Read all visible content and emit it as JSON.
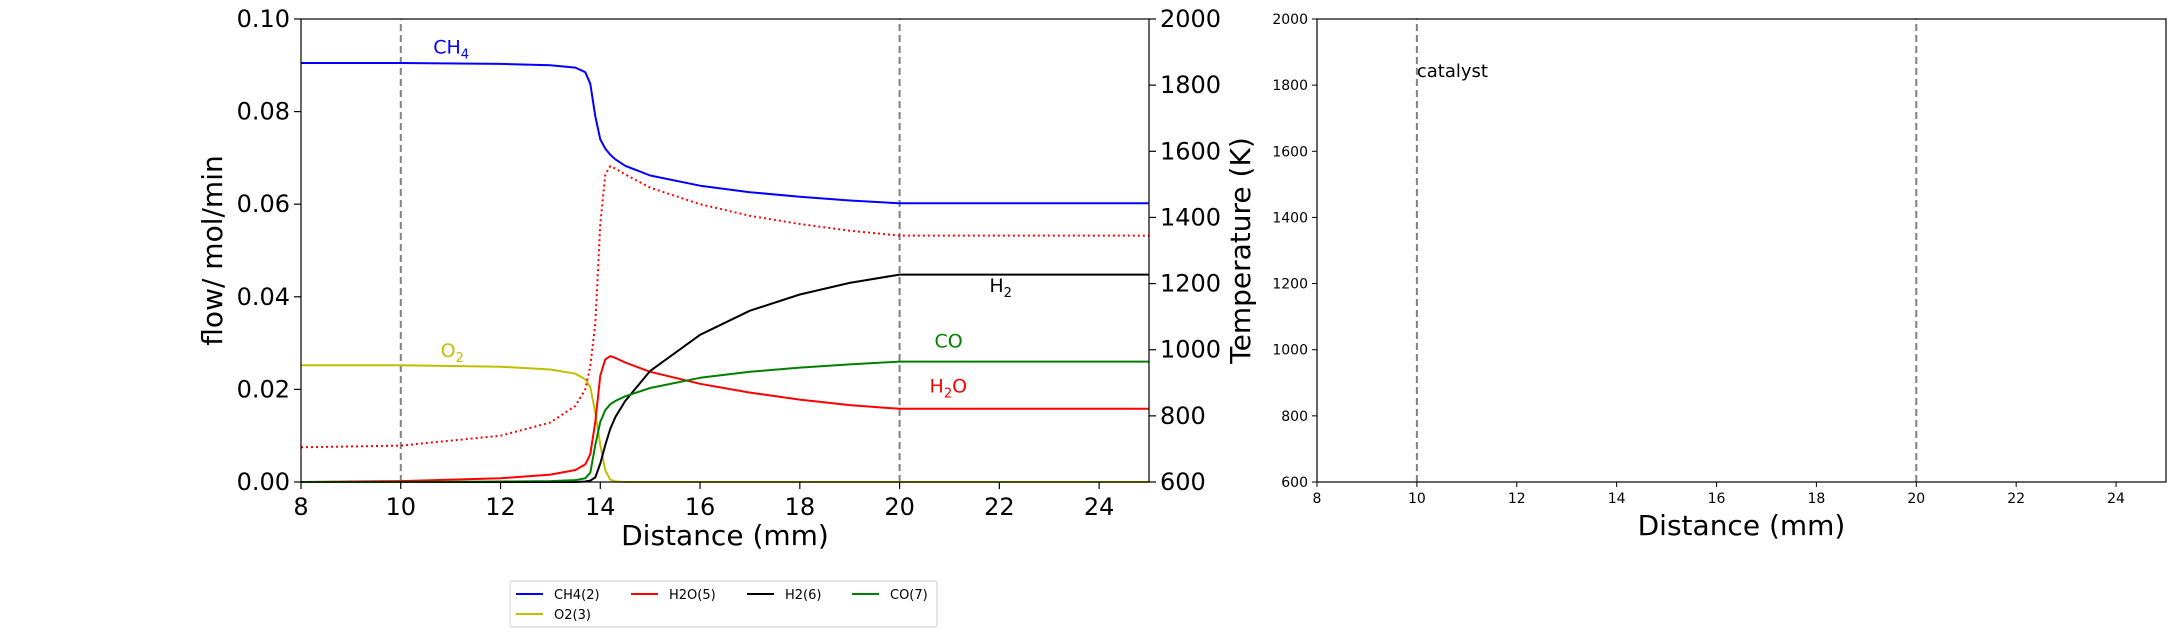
{
  "chart_data": [
    {
      "type": "line",
      "xlabel": "Distance (mm)",
      "ylabel": "flow/ mol/min",
      "y2label": "Temperature (K)",
      "xlim": [
        8,
        25
      ],
      "ylim": [
        0,
        0.1
      ],
      "y2lim": [
        600,
        2000
      ],
      "xticks": [
        "8",
        "10",
        "12",
        "14",
        "16",
        "18",
        "20",
        "22",
        "24"
      ],
      "yticks": [
        "0.00",
        "0.02",
        "0.04",
        "0.06",
        "0.08",
        "0.10"
      ],
      "y2ticks": [
        "600",
        "800",
        "1000",
        "1200",
        "1400",
        "1600",
        "1800",
        "2000"
      ],
      "grid": false,
      "vlines": [
        10,
        20
      ],
      "x": [
        8,
        10,
        12,
        13,
        13.5,
        13.7,
        13.8,
        13.9,
        14.0,
        14.1,
        14.2,
        14.3,
        14.5,
        15,
        16,
        17,
        18,
        19,
        20,
        21,
        22,
        23,
        24,
        25
      ],
      "series": [
        {
          "name": "CH4(2)",
          "color": "#0000ff",
          "values": [
            0.0905,
            0.0905,
            0.0903,
            0.09,
            0.0895,
            0.0885,
            0.086,
            0.079,
            0.074,
            0.072,
            0.0707,
            0.0697,
            0.0683,
            0.0662,
            0.064,
            0.0626,
            0.0616,
            0.0608,
            0.0602,
            0.0602,
            0.0602,
            0.0602,
            0.0602,
            0.0602
          ]
        },
        {
          "name": "O2(3)",
          "color": "#bfbf00",
          "values": [
            0.0252,
            0.0252,
            0.0249,
            0.0243,
            0.0234,
            0.0222,
            0.0205,
            0.015,
            0.008,
            0.0025,
            0.0005,
            0.0001,
            0,
            0,
            0,
            0,
            0,
            0,
            0,
            0,
            0,
            0,
            0,
            0
          ]
        },
        {
          "name": "H2O(5)",
          "color": "#ff0000",
          "values": [
            0,
            0.0002,
            0.0008,
            0.0016,
            0.0026,
            0.0038,
            0.006,
            0.013,
            0.023,
            0.0265,
            0.0272,
            0.0268,
            0.0258,
            0.0238,
            0.0212,
            0.0193,
            0.0178,
            0.0166,
            0.0158,
            0.0158,
            0.0158,
            0.0158,
            0.0158,
            0.0158
          ]
        },
        {
          "name": "H2(6)",
          "color": "#000000",
          "values": [
            0,
            0,
            0,
            0,
            0,
            0.0001,
            0.0003,
            0.001,
            0.004,
            0.008,
            0.0115,
            0.014,
            0.0175,
            0.024,
            0.0318,
            0.037,
            0.0405,
            0.043,
            0.0448,
            0.0448,
            0.0448,
            0.0448,
            0.0448,
            0.0448
          ]
        },
        {
          "name": "CO(7)",
          "color": "#008000",
          "values": [
            0,
            0,
            0.0001,
            0.0002,
            0.0004,
            0.0008,
            0.002,
            0.008,
            0.013,
            0.0155,
            0.0168,
            0.0175,
            0.0185,
            0.0203,
            0.0225,
            0.0238,
            0.0247,
            0.0254,
            0.026,
            0.026,
            0.026,
            0.026,
            0.026,
            0.026
          ]
        }
      ],
      "temperature": {
        "color": "#ff0000",
        "style": "dotted",
        "axis": "right",
        "values": [
          705,
          710,
          740,
          780,
          830,
          880,
          950,
          1080,
          1380,
          1530,
          1555,
          1548,
          1530,
          1490,
          1440,
          1405,
          1380,
          1360,
          1345,
          1345,
          1345,
          1345,
          1345,
          1345
        ]
      },
      "annotations": [
        {
          "text": "CH",
          "sub": "4",
          "x": 10.65,
          "y": 0.0925,
          "color": "#0000ff"
        },
        {
          "text": "O",
          "sub": "2",
          "x": 10.8,
          "y": 0.027,
          "color": "#bfbf00"
        },
        {
          "text": "H",
          "sub": "2",
          "x": 21.8,
          "y": 0.041,
          "color": "#000000"
        },
        {
          "text": "CO",
          "sub": "",
          "x": 20.7,
          "y": 0.029,
          "color": "#008000"
        },
        {
          "text": "H",
          "sub": "2",
          "tail": "O",
          "x": 20.6,
          "y": 0.0193,
          "color": "#ff0000"
        }
      ],
      "legend": {
        "placement": "lower-center",
        "entries": [
          "CH4(2)",
          "H2O(5)",
          "H2(6)",
          "CO(7)",
          "O2(3)"
        ]
      }
    },
    {
      "type": "line",
      "xlabel": "Distance (mm)",
      "ylabel": "",
      "xlim": [
        8,
        25
      ],
      "ylim": [
        600,
        2000
      ],
      "xticks": [
        "8",
        "10",
        "12",
        "14",
        "16",
        "18",
        "20",
        "22",
        "24"
      ],
      "yticks": [
        "600",
        "800",
        "1000",
        "1200",
        "1400",
        "1600",
        "1800",
        "2000"
      ],
      "grid": false,
      "vlines": [
        10,
        20
      ],
      "series": [],
      "annotations": [
        {
          "text": "catalyst",
          "x": 10.0,
          "y": 1825,
          "color": "#000000"
        }
      ]
    }
  ]
}
